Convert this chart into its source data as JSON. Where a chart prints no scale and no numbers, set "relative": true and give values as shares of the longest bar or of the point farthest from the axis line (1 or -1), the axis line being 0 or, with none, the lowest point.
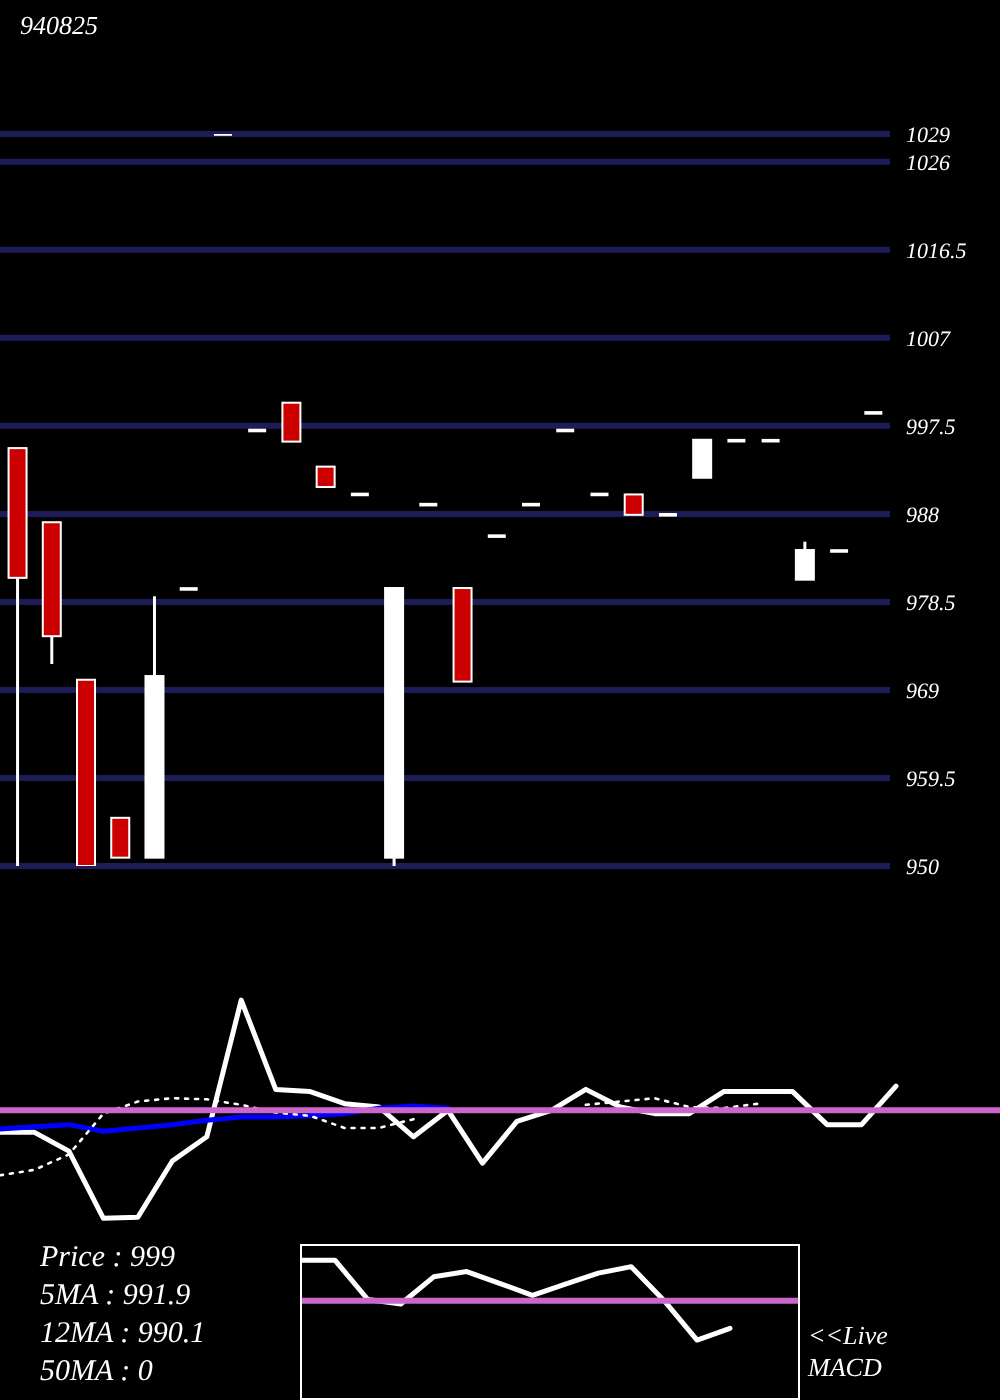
{
  "chart_data": [
    {
      "type": "candlestick",
      "title": "940825",
      "categories": [
        null,
        null,
        null,
        null,
        null,
        null,
        null,
        null,
        null,
        null,
        null,
        null,
        null,
        null,
        null,
        null,
        null,
        null,
        null,
        null,
        null,
        null,
        null,
        null,
        null,
        null
      ],
      "ohlc": [
        [
          995.1,
          995.1,
          950,
          981.1
        ],
        [
          987.1,
          987.1,
          971.8,
          974.8
        ],
        [
          970.1,
          970.1,
          950,
          950
        ],
        [
          955.2,
          955.2,
          950.9,
          950.9
        ],
        [
          950.9,
          979.1,
          950.9,
          970.5
        ],
        [
          979.9,
          979.9,
          979.9,
          979.9
        ],
        [
          1029,
          1029,
          1029,
          1029
        ],
        [
          997,
          997,
          997,
          997
        ],
        [
          1000,
          1000,
          995.8,
          995.8
        ],
        [
          993.1,
          993.1,
          990.9,
          990.9
        ],
        [
          990.1,
          990.1,
          990.1,
          990.1
        ],
        [
          950.9,
          980,
          950,
          980
        ],
        [
          989,
          989,
          989,
          989
        ],
        [
          980,
          980,
          969.9,
          969.9
        ],
        [
          985.6,
          985.6,
          985.6,
          985.6
        ],
        [
          989,
          989,
          989,
          989
        ],
        [
          997,
          997,
          997,
          997
        ],
        [
          990.1,
          990.1,
          990.1,
          990.1
        ],
        [
          990.1,
          990.1,
          987.9,
          987.9
        ],
        [
          987.9,
          987.9,
          987.9,
          987.9
        ],
        [
          991.9,
          996,
          991.9,
          996
        ],
        [
          995.9,
          995.9,
          995.9,
          995.9
        ],
        [
          995.9,
          995.9,
          995.9,
          995.9
        ],
        [
          980.9,
          985,
          980.9,
          984.1
        ],
        [
          984,
          984,
          984,
          984
        ],
        [
          998.9,
          998.9,
          998.9,
          998.9
        ]
      ],
      "colors": [
        "#cc0000",
        "#cc0000",
        "#cc0000",
        "#cc0000",
        "#ffffff",
        "#ffffff",
        "#ffffff",
        "#ffffff",
        "#cc0000",
        "#cc0000",
        "#ffffff",
        "#ffffff",
        "#ffffff",
        "#cc0000",
        "#ffffff",
        "#ffffff",
        "#ffffff",
        "#ffffff",
        "#cc0000",
        "#ffffff",
        "#ffffff",
        "#ffffff",
        "#ffffff",
        "#ffffff",
        "#ffffff",
        "#ffffff"
      ],
      "ylim": [
        950,
        1029
      ],
      "yticks": [
        950,
        959.5,
        969,
        978.5,
        988,
        997.5,
        1007,
        1016.5,
        1026,
        1029
      ],
      "grid": "y",
      "tick_labels": "y"
    },
    {
      "type": "line",
      "relative": true,
      "categories": [
        null,
        null,
        null,
        null,
        null,
        null,
        null,
        null,
        null,
        null,
        null,
        null,
        null,
        null,
        null,
        null,
        null,
        null,
        null,
        null,
        null,
        null,
        null,
        null,
        null,
        null,
        null
      ],
      "series": [
        {
          "color": "#ffffff",
          "values": [
            -0.2,
            -0.2,
            -0.37,
            -0.98,
            -0.97,
            -0.46,
            -0.24,
            1,
            0.19,
            0.17,
            0.06,
            0.03,
            -0.24,
            0,
            -0.48,
            -0.1,
            0,
            0.19,
            0.03,
            -0.03,
            -0.03,
            0.17,
            0.17,
            0.17,
            -0.13,
            -0.13,
            0.22
          ]
        },
        {
          "color": "#0000ff",
          "values": [
            -0.17,
            -0.15,
            -0.13,
            -0.19,
            -0.16,
            -0.13,
            -0.09,
            -0.06,
            -0.06,
            -0.05,
            -0.03,
            0.02,
            0.04,
            0.02,
            null,
            null,
            null,
            null,
            null,
            null,
            null,
            null,
            null,
            null,
            null,
            null,
            null
          ]
        },
        {
          "color": "#ffffff",
          "line_style": "dotted",
          "values": [
            -0.59,
            -0.54,
            -0.4,
            -0.03,
            0.08,
            0.11,
            0.1,
            0.05,
            -0.02,
            -0.05,
            -0.16,
            -0.16,
            -0.08,
            null,
            null,
            null,
            null,
            0.05,
            0.08,
            0.11,
            0.03,
            0.02,
            0.06,
            null,
            null,
            null,
            null
          ]
        }
      ],
      "ref_lines": [
        {
          "axis": "y",
          "value": 0,
          "color": "#cc66cc"
        }
      ],
      "tick_labels": false
    },
    {
      "type": "line",
      "relative": true,
      "categories": [
        null,
        null,
        null,
        null,
        null,
        null,
        null,
        null,
        null,
        null,
        null,
        null,
        null,
        null
      ],
      "series": [
        {
          "color": "#ffffff",
          "values": [
            1,
            1,
            0.03,
            -0.08,
            0.59,
            0.72,
            0.43,
            0.13,
            0.41,
            0.68,
            0.84,
            0,
            -0.97,
            -0.68
          ]
        }
      ],
      "ref_lines": [
        {
          "axis": "y",
          "value": 0,
          "color": "#cc66cc"
        }
      ],
      "tick_labels": false,
      "annotations": [
        "Price : 999",
        "5MA : 991.9",
        "12MA : 990.1",
        "50MA : 0",
        "<<Live MACD"
      ]
    }
  ]
}
